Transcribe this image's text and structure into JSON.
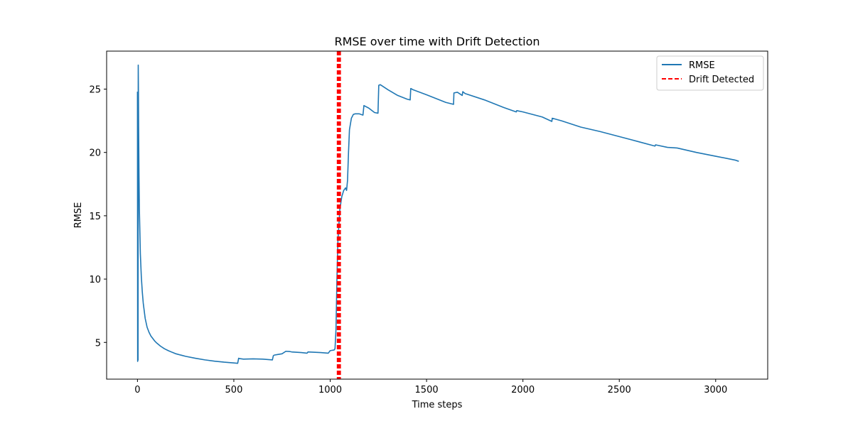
{
  "chart_data": {
    "type": "line",
    "title": "RMSE over time with Drift Detection",
    "xlabel": "Time steps",
    "ylabel": "RMSE",
    "xlim": [
      -160,
      3270
    ],
    "ylim": [
      2.1,
      28.0
    ],
    "xticks": [
      0,
      500,
      1000,
      1500,
      2000,
      2500,
      3000
    ],
    "yticks": [
      5,
      10,
      15,
      20,
      25
    ],
    "grid": false,
    "legend_position": "upper-right",
    "series": [
      {
        "name": "RMSE",
        "color": "#1f77b4",
        "style": "solid",
        "x": [
          0,
          1,
          2,
          3,
          4,
          5,
          6,
          8,
          10,
          15,
          20,
          25,
          30,
          40,
          50,
          60,
          70,
          80,
          90,
          100,
          120,
          140,
          160,
          180,
          200,
          250,
          300,
          350,
          400,
          450,
          500,
          520,
          525,
          530,
          550,
          600,
          650,
          700,
          705,
          710,
          730,
          750,
          770,
          790,
          800,
          850,
          880,
          885,
          950,
          990,
          1000,
          1020,
          1025,
          1030,
          1035,
          1040,
          1050,
          1060,
          1070,
          1080,
          1085,
          1090,
          1095,
          1100,
          1110,
          1120,
          1130,
          1150,
          1170,
          1175,
          1200,
          1230,
          1248,
          1252,
          1260,
          1270,
          1300,
          1350,
          1400,
          1415,
          1418,
          1430,
          1500,
          1550,
          1600,
          1640,
          1642,
          1660,
          1685,
          1688,
          1700,
          1800,
          1900,
          1965,
          1968,
          2000,
          2100,
          2150,
          2152,
          2200,
          2300,
          2400,
          2500,
          2600,
          2685,
          2688,
          2750,
          2800,
          2900,
          3000,
          3100,
          3120
        ],
        "y": [
          24.8,
          3.5,
          4.9,
          3.6,
          26.9,
          25.0,
          22.0,
          18.2,
          15.5,
          12.0,
          10.2,
          9.0,
          8.1,
          6.9,
          6.2,
          5.8,
          5.5,
          5.3,
          5.1,
          4.95,
          4.7,
          4.5,
          4.35,
          4.22,
          4.1,
          3.9,
          3.75,
          3.62,
          3.52,
          3.44,
          3.38,
          3.35,
          3.75,
          3.72,
          3.68,
          3.7,
          3.68,
          3.62,
          3.95,
          4.0,
          4.05,
          4.1,
          4.3,
          4.28,
          4.25,
          4.2,
          4.15,
          4.25,
          4.2,
          4.15,
          4.35,
          4.4,
          4.5,
          6.0,
          10.0,
          13.0,
          15.5,
          16.5,
          17.0,
          17.2,
          17.0,
          17.8,
          20.0,
          21.8,
          22.7,
          23.0,
          23.05,
          23.05,
          22.95,
          23.7,
          23.5,
          23.15,
          23.1,
          25.3,
          25.35,
          25.25,
          24.95,
          24.5,
          24.2,
          24.15,
          25.05,
          24.95,
          24.55,
          24.25,
          23.95,
          23.8,
          24.7,
          24.75,
          24.5,
          24.8,
          24.65,
          24.15,
          23.55,
          23.2,
          23.3,
          23.2,
          22.8,
          22.45,
          22.7,
          22.5,
          22.0,
          21.65,
          21.25,
          20.85,
          20.5,
          20.6,
          20.4,
          20.35,
          20.0,
          19.7,
          19.4,
          19.3
        ]
      },
      {
        "name": "Drift Detected",
        "color": "#ff0000",
        "style": "dashed",
        "vlines": [
          1038,
          1040,
          1042,
          1044,
          1046,
          1048,
          1050,
          1052
        ]
      }
    ]
  }
}
